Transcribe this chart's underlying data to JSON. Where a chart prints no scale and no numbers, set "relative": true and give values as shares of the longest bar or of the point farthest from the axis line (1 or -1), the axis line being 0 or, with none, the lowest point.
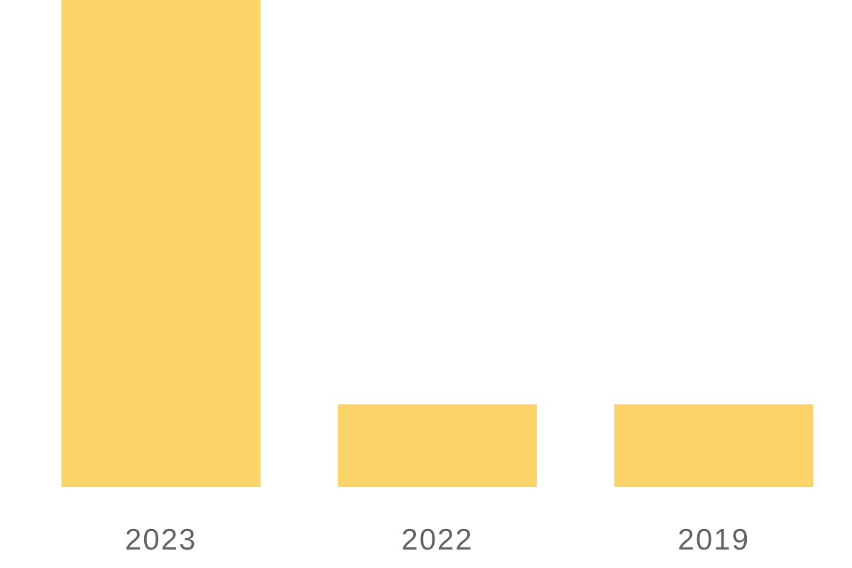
{
  "chart_data": {
    "type": "bar",
    "relative": true,
    "categories": [
      "2023",
      "2022",
      "2019"
    ],
    "values": [
      1,
      0.17,
      0.17
    ],
    "color": "#fdd46a"
  }
}
